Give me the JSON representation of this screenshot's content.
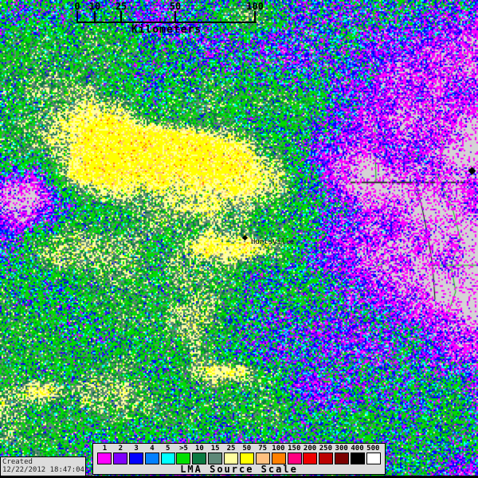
{
  "map": {
    "place_label": "Huntsville",
    "background_color": "#D5D1D5",
    "boundary_color": "#000000",
    "river_color": "#00B400",
    "dot_colors": {
      "magenta": "#FF00FF",
      "purple": "#8000FF",
      "blue": "#0000FF",
      "dodger": "#0080FF",
      "cyan": "#00FFFF",
      "green": "#00DC00",
      "dark_green": "#0A7A42",
      "slate": "#5E8878",
      "pale_yellow": "#FFFFA0",
      "yellow": "#FFFF00",
      "peach": "#FFC080",
      "orange": "#FF8000"
    }
  },
  "scale_bar": {
    "unit_label": "Kilometers",
    "ticks": [
      {
        "label": "0"
      },
      {
        "label": "10"
      },
      {
        "label": "25"
      },
      {
        "label": "50"
      },
      {
        "label": "100"
      }
    ]
  },
  "legend": {
    "title": "LMA Source Scale",
    "entries": [
      {
        "label": "1",
        "color": "#FF00FF"
      },
      {
        "label": "2",
        "color": "#8000FF"
      },
      {
        "label": "3",
        "color": "#0000FF"
      },
      {
        "label": "4",
        "color": "#0080FF"
      },
      {
        "label": "5",
        "color": "#00FFFF"
      },
      {
        "label": ">5",
        "color": "#00E000"
      },
      {
        "label": "10",
        "color": "#0A7A42"
      },
      {
        "label": "15",
        "color": "#5E8878"
      },
      {
        "label": "25",
        "color": "#FFFFA0"
      },
      {
        "label": "50",
        "color": "#FFFF00"
      },
      {
        "label": "75",
        "color": "#FFC080"
      },
      {
        "label": "100",
        "color": "#FF8000"
      },
      {
        "label": "150",
        "color": "#FF0080"
      },
      {
        "label": "200",
        "color": "#EE0000"
      },
      {
        "label": "250",
        "color": "#BB0000"
      },
      {
        "label": "300",
        "color": "#7A0000"
      },
      {
        "label": "400",
        "color": "#000000"
      },
      {
        "label": "500",
        "color": "#FFFFFF"
      }
    ]
  },
  "created": {
    "line1": "Created",
    "line2": "12/22/2012 18:47:04"
  }
}
